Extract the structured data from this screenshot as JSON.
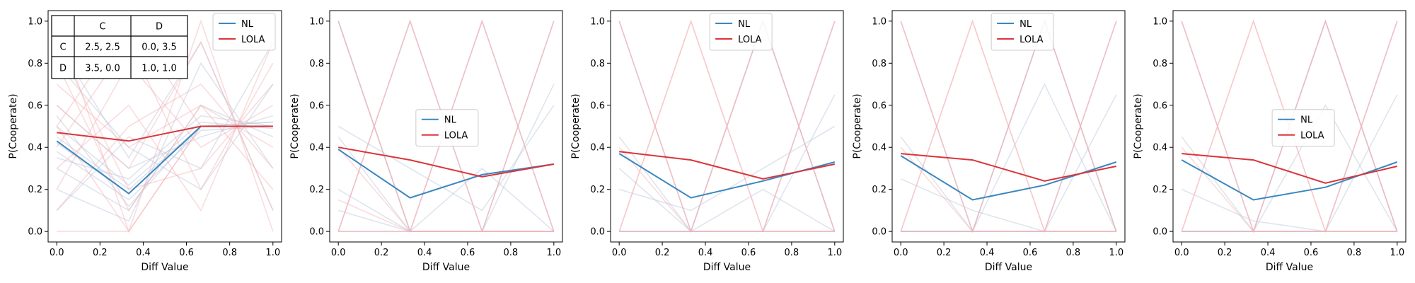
{
  "figure": {
    "colors": {
      "NL": "#3a87c0",
      "LOLA": "#d9353a",
      "NL_faint": "#b9c5da",
      "LOLA_faint": "#f4b2b5"
    },
    "panel_count": 5
  },
  "chart_data": [
    {
      "type": "line",
      "xlabel": "Diff Value",
      "ylabel": "P(Cooperate)",
      "xlim": [
        -0.04,
        1.04
      ],
      "ylim": [
        -0.05,
        1.05
      ],
      "xticks": [
        "0.0",
        "0.2",
        "0.4",
        "0.6",
        "0.8",
        "1.0"
      ],
      "yticks": [
        "0.0",
        "0.2",
        "0.4",
        "0.6",
        "0.8",
        "1.0"
      ],
      "legend": {
        "position": "upper right",
        "entries": [
          "NL",
          "LOLA"
        ]
      },
      "payoff_table": {
        "col_headers": [
          "",
          "C",
          "D"
        ],
        "rows": [
          [
            "C",
            "2.5, 2.5",
            "0.0, 3.5"
          ],
          [
            "D",
            "3.5, 0.0",
            "1.0, 1.0"
          ]
        ]
      },
      "x": [
        0.0,
        0.333,
        0.667,
        1.0
      ],
      "series": [
        {
          "name": "NL",
          "values": [
            0.43,
            0.18,
            0.5,
            0.5
          ]
        },
        {
          "name": "LOLA",
          "values": [
            0.47,
            0.43,
            0.5,
            0.5
          ]
        }
      ],
      "background_runs": {
        "NL": [
          [
            0.45,
            0.2,
            0.5,
            0.52
          ],
          [
            0.38,
            0.15,
            0.48,
            0.5
          ],
          [
            0.5,
            0.22,
            0.52,
            0.49
          ],
          [
            0.3,
            0.1,
            0.6,
            0.45
          ],
          [
            0.6,
            0.3,
            0.45,
            0.55
          ],
          [
            0.2,
            0.05,
            0.8,
            0.3
          ],
          [
            0.8,
            0.4,
            0.2,
            0.7
          ],
          [
            0.35,
            0.25,
            0.55,
            0.5
          ],
          [
            0.55,
            0.12,
            0.5,
            0.52
          ],
          [
            0.9,
            0.35,
            0.9,
            0.1
          ],
          [
            0.1,
            0.45,
            0.3,
            0.9
          ],
          [
            0.42,
            0.18,
            0.5,
            0.5
          ]
        ],
        "LOLA": [
          [
            1.0,
            0.0,
            0.5,
            0.5
          ],
          [
            0.0,
            0.0,
            0.5,
            0.5
          ],
          [
            0.5,
            1.0,
            0.5,
            0.5
          ],
          [
            0.8,
            0.1,
            0.6,
            0.4
          ],
          [
            0.2,
            0.8,
            0.4,
            0.6
          ],
          [
            0.6,
            0.3,
            0.9,
            0.1
          ],
          [
            0.3,
            0.6,
            0.1,
            0.9
          ],
          [
            0.9,
            0.2,
            0.3,
            0.7
          ],
          [
            0.1,
            0.5,
            0.7,
            0.3
          ],
          [
            0.5,
            0.0,
            1.0,
            0.0
          ],
          [
            0.4,
            0.9,
            0.2,
            0.8
          ],
          [
            0.7,
            0.4,
            0.6,
            0.2
          ]
        ]
      }
    },
    {
      "type": "line",
      "xlabel": "Diff Value",
      "ylabel": "P(Cooperate)",
      "xlim": [
        -0.04,
        1.04
      ],
      "ylim": [
        -0.05,
        1.05
      ],
      "xticks": [
        "0.0",
        "0.2",
        "0.4",
        "0.6",
        "0.8",
        "1.0"
      ],
      "yticks": [
        "0.0",
        "0.2",
        "0.4",
        "0.6",
        "0.8",
        "1.0"
      ],
      "legend": {
        "position": "center",
        "entries": [
          "NL",
          "LOLA"
        ]
      },
      "x": [
        0.0,
        0.333,
        0.667,
        1.0
      ],
      "series": [
        {
          "name": "NL",
          "values": [
            0.39,
            0.16,
            0.27,
            0.32
          ]
        },
        {
          "name": "LOLA",
          "values": [
            0.4,
            0.34,
            0.26,
            0.32
          ]
        }
      ],
      "background_runs": {
        "NL": [
          [
            1.0,
            0.0,
            0.0,
            1.0
          ],
          [
            0.0,
            1.0,
            0.0,
            0.0
          ],
          [
            1.0,
            0.0,
            1.0,
            0.0
          ],
          [
            0.2,
            0.0,
            0.0,
            0.0
          ],
          [
            0.5,
            0.3,
            0.1,
            0.6
          ],
          [
            0.1,
            0.0,
            0.3,
            0.0
          ],
          [
            0.0,
            0.0,
            0.0,
            0.7
          ],
          [
            0.45,
            0.0,
            0.0,
            0.0
          ]
        ],
        "LOLA": [
          [
            1.0,
            0.0,
            0.0,
            0.0
          ],
          [
            0.0,
            1.0,
            0.0,
            0.0
          ],
          [
            0.0,
            1.0,
            0.0,
            1.0
          ],
          [
            1.0,
            0.0,
            1.0,
            0.0
          ],
          [
            0.0,
            0.0,
            1.0,
            0.0
          ],
          [
            0.0,
            0.0,
            0.0,
            1.0
          ],
          [
            0.4,
            0.0,
            0.0,
            0.0
          ],
          [
            0.15,
            0.0,
            0.0,
            0.0
          ]
        ]
      }
    },
    {
      "type": "line",
      "xlabel": "Diff Value",
      "ylabel": "P(Cooperate)",
      "xlim": [
        -0.04,
        1.04
      ],
      "ylim": [
        -0.05,
        1.05
      ],
      "xticks": [
        "0.0",
        "0.2",
        "0.4",
        "0.6",
        "0.8",
        "1.0"
      ],
      "yticks": [
        "0.0",
        "0.2",
        "0.4",
        "0.6",
        "0.8",
        "1.0"
      ],
      "legend": {
        "position": "upper center",
        "entries": [
          "NL",
          "LOLA"
        ]
      },
      "x": [
        0.0,
        0.333,
        0.667,
        1.0
      ],
      "series": [
        {
          "name": "NL",
          "values": [
            0.37,
            0.16,
            0.24,
            0.33
          ]
        },
        {
          "name": "LOLA",
          "values": [
            0.38,
            0.34,
            0.25,
            0.32
          ]
        }
      ],
      "background_runs": {
        "NL": [
          [
            1.0,
            0.0,
            1.0,
            0.0
          ],
          [
            0.0,
            0.0,
            1.0,
            0.0
          ],
          [
            0.0,
            0.0,
            0.0,
            1.0
          ],
          [
            0.45,
            0.0,
            0.0,
            0.0
          ],
          [
            0.2,
            0.1,
            0.3,
            0.5
          ],
          [
            0.0,
            0.0,
            0.0,
            0.65
          ],
          [
            0.3,
            0.0,
            0.2,
            0.0
          ]
        ],
        "LOLA": [
          [
            1.0,
            0.0,
            0.0,
            0.0
          ],
          [
            0.0,
            1.0,
            0.0,
            0.0
          ],
          [
            0.0,
            0.0,
            1.0,
            0.0
          ],
          [
            0.0,
            0.0,
            0.0,
            1.0
          ],
          [
            0.0,
            1.0,
            0.0,
            1.0
          ],
          [
            1.0,
            0.0,
            1.0,
            0.0
          ],
          [
            0.4,
            0.0,
            0.0,
            0.0
          ]
        ]
      }
    },
    {
      "type": "line",
      "xlabel": "Diff Value",
      "ylabel": "P(Cooperate)",
      "xlim": [
        -0.04,
        1.04
      ],
      "ylim": [
        -0.05,
        1.05
      ],
      "xticks": [
        "0.0",
        "0.2",
        "0.4",
        "0.6",
        "0.8",
        "1.0"
      ],
      "yticks": [
        "0.0",
        "0.2",
        "0.4",
        "0.6",
        "0.8",
        "1.0"
      ],
      "legend": {
        "position": "upper center",
        "entries": [
          "NL",
          "LOLA"
        ]
      },
      "x": [
        0.0,
        0.333,
        0.667,
        1.0
      ],
      "series": [
        {
          "name": "NL",
          "values": [
            0.36,
            0.15,
            0.22,
            0.33
          ]
        },
        {
          "name": "LOLA",
          "values": [
            0.37,
            0.34,
            0.24,
            0.31
          ]
        }
      ],
      "background_runs": {
        "NL": [
          [
            1.0,
            0.0,
            1.0,
            0.0
          ],
          [
            0.0,
            0.0,
            1.0,
            0.0
          ],
          [
            0.0,
            0.0,
            0.0,
            1.0
          ],
          [
            0.45,
            0.0,
            0.0,
            0.0
          ],
          [
            0.0,
            0.0,
            0.0,
            0.65
          ],
          [
            0.25,
            0.1,
            0.0,
            0.0
          ],
          [
            0.0,
            0.0,
            0.7,
            0.0
          ]
        ],
        "LOLA": [
          [
            1.0,
            0.0,
            0.0,
            0.0
          ],
          [
            0.0,
            1.0,
            0.0,
            0.0
          ],
          [
            0.0,
            0.0,
            1.0,
            0.0
          ],
          [
            0.0,
            0.0,
            0.0,
            1.0
          ],
          [
            0.0,
            1.0,
            0.0,
            1.0
          ],
          [
            1.0,
            0.0,
            1.0,
            0.0
          ],
          [
            0.4,
            0.0,
            0.0,
            0.0
          ]
        ]
      }
    },
    {
      "type": "line",
      "xlabel": "Diff Value",
      "ylabel": "P(Cooperate)",
      "xlim": [
        -0.04,
        1.04
      ],
      "ylim": [
        -0.05,
        1.05
      ],
      "xticks": [
        "0.0",
        "0.2",
        "0.4",
        "0.6",
        "0.8",
        "1.0"
      ],
      "yticks": [
        "0.0",
        "0.2",
        "0.4",
        "0.6",
        "0.8",
        "1.0"
      ],
      "legend": {
        "position": "center right",
        "entries": [
          "NL",
          "LOLA"
        ]
      },
      "x": [
        0.0,
        0.333,
        0.667,
        1.0
      ],
      "series": [
        {
          "name": "NL",
          "values": [
            0.34,
            0.15,
            0.21,
            0.33
          ]
        },
        {
          "name": "LOLA",
          "values": [
            0.37,
            0.34,
            0.23,
            0.31
          ]
        }
      ],
      "background_runs": {
        "NL": [
          [
            1.0,
            0.0,
            1.0,
            0.0
          ],
          [
            0.0,
            0.0,
            1.0,
            0.0
          ],
          [
            0.0,
            0.0,
            0.0,
            1.0
          ],
          [
            0.45,
            0.0,
            0.0,
            0.0
          ],
          [
            0.0,
            0.0,
            0.0,
            0.65
          ],
          [
            0.2,
            0.05,
            0.0,
            0.0
          ],
          [
            0.0,
            0.0,
            0.6,
            0.0
          ]
        ],
        "LOLA": [
          [
            1.0,
            0.0,
            0.0,
            0.0
          ],
          [
            0.0,
            1.0,
            0.0,
            0.0
          ],
          [
            0.0,
            0.0,
            1.0,
            0.0
          ],
          [
            0.0,
            0.0,
            0.0,
            1.0
          ],
          [
            0.0,
            1.0,
            0.0,
            1.0
          ],
          [
            1.0,
            0.0,
            1.0,
            0.0
          ],
          [
            0.4,
            0.0,
            0.0,
            0.0
          ]
        ]
      }
    }
  ]
}
